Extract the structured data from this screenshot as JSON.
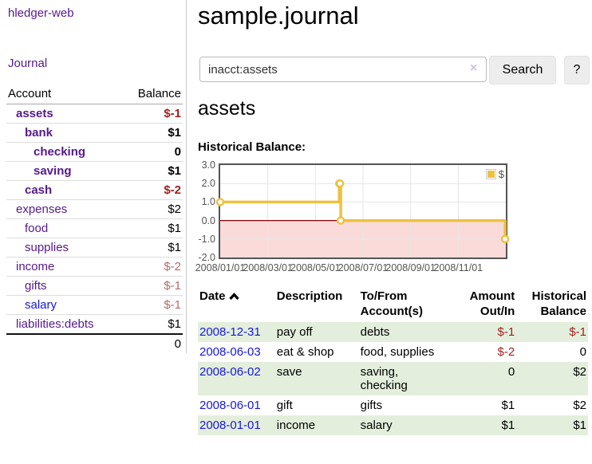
{
  "sidebar": {
    "brand": "hledger-web",
    "nav": {
      "journal": "Journal"
    },
    "accounts_table": {
      "headers": {
        "account": "Account",
        "balance": "Balance"
      },
      "rows": [
        {
          "name": "assets",
          "balance": "$-1",
          "depth": 1,
          "bold": true,
          "balance_style": "neg-strong"
        },
        {
          "name": "bank",
          "balance": "$1",
          "depth": 2,
          "bold": true,
          "balance_style": "bold"
        },
        {
          "name": "checking",
          "balance": "0",
          "depth": 3,
          "bold": true,
          "balance_style": "bold"
        },
        {
          "name": "saving",
          "balance": "$1",
          "depth": 3,
          "bold": true,
          "balance_style": "bold"
        },
        {
          "name": "cash",
          "balance": "$-2",
          "depth": 2,
          "bold": true,
          "balance_style": "neg-strong"
        },
        {
          "name": "expenses",
          "balance": "$2",
          "depth": 1,
          "bold": false,
          "balance_style": ""
        },
        {
          "name": "food",
          "balance": "$1",
          "depth": 2,
          "bold": false,
          "balance_style": ""
        },
        {
          "name": "supplies",
          "balance": "$1",
          "depth": 2,
          "bold": false,
          "balance_style": ""
        },
        {
          "name": "income",
          "balance": "$-2",
          "depth": 1,
          "bold": false,
          "balance_style": "neg-faded"
        },
        {
          "name": "gifts",
          "balance": "$-1",
          "depth": 2,
          "bold": false,
          "balance_style": "neg-faded"
        },
        {
          "name": "salary",
          "balance": "$-1",
          "depth": 2,
          "bold": false,
          "balance_style": "neg-faded",
          "link_color": "blue"
        },
        {
          "name": "liabilities:debts",
          "balance": "$1",
          "depth": 1,
          "bold": false,
          "balance_style": "",
          "total_border": true
        }
      ],
      "total": "0"
    }
  },
  "header": {
    "title": "sample.journal"
  },
  "search": {
    "value": "inacct:assets",
    "clear_icon": "×",
    "button_label": "Search",
    "help_label": "?"
  },
  "account_page": {
    "title": "assets",
    "chart_label": "Historical Balance:"
  },
  "chart_data": {
    "type": "line",
    "style": "step-after",
    "title": "Historical Balance",
    "series": [
      {
        "name": "$",
        "color": "#edc240",
        "points": [
          [
            "2008-01-01",
            1
          ],
          [
            "2008-06-01",
            2
          ],
          [
            "2008-06-02",
            2
          ],
          [
            "2008-06-03",
            0
          ],
          [
            "2008-12-31",
            -1
          ]
        ]
      }
    ],
    "ylim": [
      -2,
      3
    ],
    "yticks": [
      "3.0",
      "2.0",
      "1.0",
      "0.0",
      "-1.0",
      "-2.0"
    ],
    "ytick_values": [
      3,
      2,
      1,
      0,
      -1,
      -2
    ],
    "xticks": [
      "2008/01/01",
      "2008/03/01",
      "2008/05/01",
      "2008/07/01",
      "2008/09/01",
      "2008/11/01"
    ],
    "xtick_months": [
      0,
      2,
      4,
      6,
      8,
      10
    ],
    "xlim_months": [
      0,
      12
    ],
    "grid": true,
    "legend_position": "top-right",
    "legend_label": "$",
    "colors": {
      "grid": "#e6e6e6",
      "negative_fill": "#fbdada",
      "zero_line": "#8b0000",
      "border": "#545454",
      "marker_fill": "#ffffff"
    }
  },
  "register": {
    "headers": {
      "date": "Date",
      "description": "Description",
      "to_from": "To/From Account(s)",
      "amount": "Amount Out/In",
      "balance": "Historical Balance"
    },
    "rows": [
      {
        "date": "2008-12-31",
        "description": "pay off",
        "to_from": "debts",
        "amount": "$-1",
        "balance": "$-1"
      },
      {
        "date": "2008-06-03",
        "description": "eat & shop",
        "to_from": "food, supplies",
        "amount": "$-2",
        "balance": "0"
      },
      {
        "date": "2008-06-02",
        "description": "save",
        "to_from": "saving, checking",
        "amount": "0",
        "balance": "$2"
      },
      {
        "date": "2008-06-01",
        "description": "gift",
        "to_from": "gifts",
        "amount": "$1",
        "balance": "$2"
      },
      {
        "date": "2008-01-01",
        "description": "income",
        "to_from": "salary",
        "amount": "$1",
        "balance": "$1"
      }
    ]
  }
}
